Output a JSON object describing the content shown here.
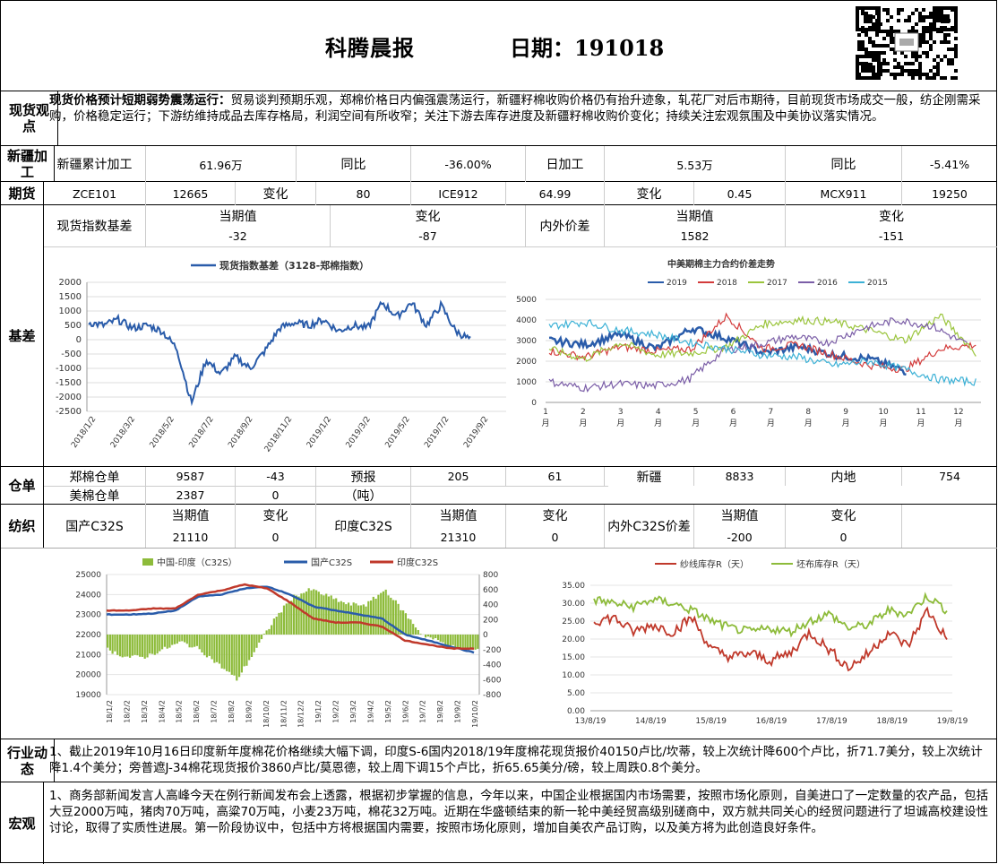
{
  "header": {
    "title": "科腾晨报",
    "date": "日期：191018"
  },
  "spot": {
    "label": "现货观点",
    "bold": "现货价格预计短期弱势震荡运行：",
    "text": "贸易谈判预期乐观，郑棉价格日内偏强震荡运行，新疆籽棉收购价格仍有抬升迹象，轧花厂对后市期待，目前现货市场成交一般，纺企刚需采购，价格稳定运行；下游纺维持成品去库存格局，利润空间有所收窄；关注下游去库存进度及新疆籽棉收购价变化；持续关注宏观氛围及中美协议落实情况。"
  },
  "xinjiang": {
    "label": "新疆加工",
    "cells": [
      "新疆累计加工",
      "61.96万",
      "同比",
      "-36.00%",
      "日加工",
      "5.53万",
      "同比",
      "-5.41%"
    ]
  },
  "futures": {
    "label": "期货",
    "cells": [
      "ZCE101",
      "12665",
      "变化",
      "80",
      "ICE912",
      "64.99",
      "变化",
      "0.45",
      "MCX911",
      "19250"
    ]
  },
  "basis": {
    "label": "基差",
    "r1": [
      "现货指数基差",
      "当期值",
      "变化",
      "内外价差",
      "当期值",
      "变化"
    ],
    "r2": [
      "-32",
      "-87",
      "1582",
      "-151"
    ],
    "chart1": {
      "legend": "现货指数基差（3128-郑棉指数）",
      "yticks": [
        "2000",
        "1500",
        "1000",
        "500",
        "0",
        "-500",
        "-1000",
        "-1500",
        "-2000",
        "-2500"
      ],
      "xticks": [
        "2018/1/2",
        "2018/3/2",
        "2018/5/2",
        "2018/7/2",
        "2018/9/2",
        "2018/11/2",
        "2019/1/2",
        "2019/3/2",
        "2019/5/2",
        "2019/7/2",
        "2019/9/2"
      ]
    },
    "chart2": {
      "title": "中美期棉主力合约价差走势",
      "legend": [
        "2019",
        "2018",
        "2017",
        "2016",
        "2015"
      ],
      "colors": [
        "#2a5caa",
        "#d33b3b",
        "#9bc53d",
        "#7b5ea7",
        "#3cb1d6"
      ],
      "yticks": [
        "5000",
        "4000",
        "3000",
        "2000",
        "1000",
        "0"
      ],
      "xticks": [
        "1",
        "2",
        "3",
        "4",
        "5",
        "6",
        "7",
        "8",
        "9",
        "10",
        "11",
        "12"
      ],
      "xunit": "月"
    }
  },
  "warehouse": {
    "label": "仓单",
    "r1": [
      "郑棉仓单",
      "9587",
      "-43",
      "预报",
      "205",
      "61",
      "新疆",
      "8833",
      "内地",
      "754"
    ],
    "r2": [
      "美棉仓单",
      "2387",
      "0",
      "（吨）"
    ]
  },
  "textile": {
    "label": "纺织",
    "r1": [
      "当期值",
      "变化",
      "当期值",
      "变化",
      "当期值",
      "变化"
    ],
    "names": [
      "国产C32S",
      "印度C32S",
      "内外C32S价差"
    ],
    "r2": [
      "21110",
      "0",
      "21310",
      "0",
      "-200",
      "0"
    ],
    "chart3": {
      "legend": [
        "中国-印度（C32S）",
        "国产C32S",
        "印度C32S"
      ],
      "yticks": [
        "25000",
        "24000",
        "23000",
        "22000",
        "21000",
        "20000",
        "19000"
      ],
      "y2ticks": [
        "800",
        "600",
        "400",
        "200",
        "0",
        "-200",
        "-400",
        "-600",
        "-800"
      ],
      "xticks": [
        "18/1/2",
        "18/2/2",
        "18/3/2",
        "18/4/2",
        "18/5/2",
        "18/6/2",
        "18/7/2",
        "18/8/2",
        "18/9/2",
        "18/10/2",
        "18/11/2",
        "18/12/2",
        "19/1/2",
        "19/2/2",
        "19/3/2",
        "19/4/2",
        "19/5/2",
        "19/6/2",
        "19/7/2",
        "19/8/2",
        "19/9/2",
        "19/10/2"
      ]
    },
    "chart4": {
      "legend": [
        "纱线库存R（天）",
        "坯布库存R（天）"
      ],
      "yticks": [
        "35.00",
        "30.00",
        "25.00",
        "20.00",
        "15.00",
        "10.00",
        "5.00",
        "0.00"
      ],
      "xticks": [
        "13/8/19",
        "14/8/19",
        "15/8/19",
        "16/8/19",
        "17/8/19",
        "18/8/19",
        "19/8/19"
      ]
    }
  },
  "industry": {
    "label": "行业动态",
    "text": "1、截止2019年10月16日印度新年度棉花价格继续大幅下调，印度S-6国内2018/19年度棉花现货报价40150卢比/坎蒂，较上次统计降600个卢比，折71.7美分，较上次统计降1.4个美分；旁普遮J-34棉花现货报价3860卢比/莫恩德，较上周下调15个卢比，折65.65美分/磅，较上周跌0.8个美分。"
  },
  "macro": {
    "label": "宏观",
    "text": "1、商务部新闻发言人高峰今天在例行新闻发布会上透露，根据初步掌握的信息，今年以来，中国企业根据国内市场需要，按照市场化原则，自美进口了一定数量的农产品，包括大豆2000万吨，猪肉70万吨，高粱70万吨，小麦23万吨，棉花32万吨。近期在华盛顿结束的新一轮中美经贸高级别磋商中，双方就共同关心的经贸问题进行了坦诚高校建设性讨论，取得了实质性进展。第一阶段协议中，包括中方将根据国内需要，按照市场化原则，增加自美农产品订购，以及美方将为此创造良好条件。"
  }
}
